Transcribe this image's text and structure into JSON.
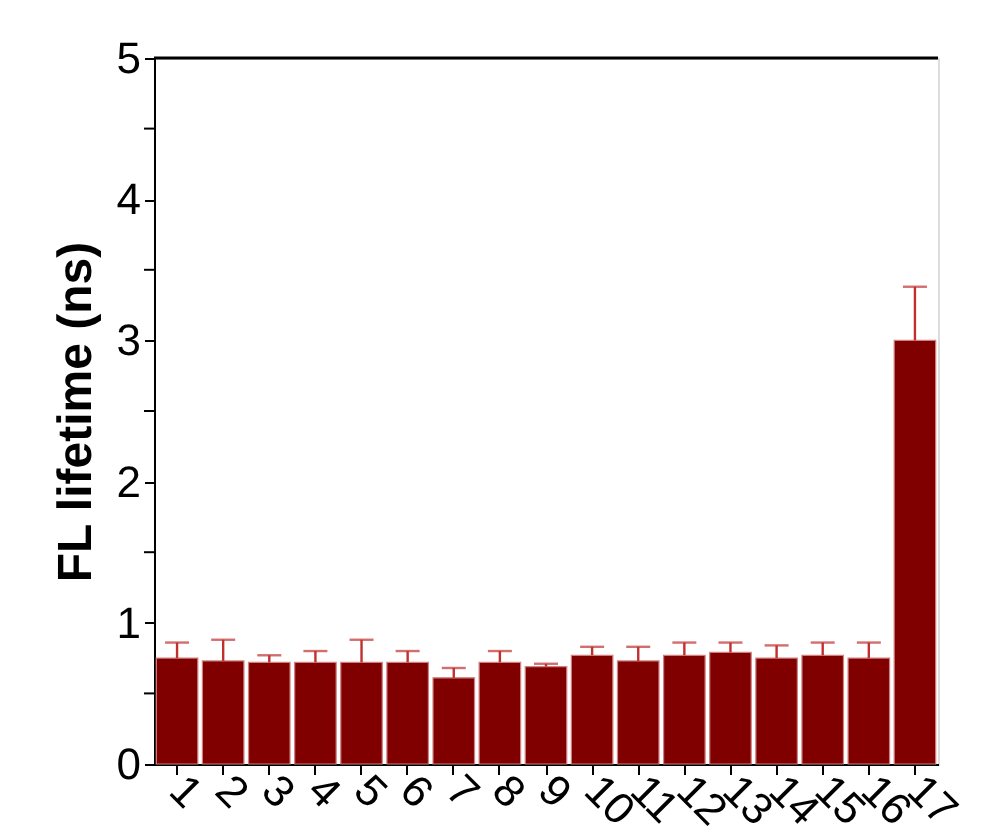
{
  "chart_data": {
    "type": "bar",
    "ylabel": "FL lifetime (ns)",
    "categories": [
      "1",
      "2",
      "3",
      "4",
      "5",
      "6",
      "7",
      "8",
      "9",
      "10",
      "11",
      "12",
      "13",
      "14",
      "15",
      "16",
      "17"
    ],
    "values": [
      0.75,
      0.73,
      0.72,
      0.72,
      0.72,
      0.72,
      0.61,
      0.72,
      0.69,
      0.77,
      0.73,
      0.77,
      0.79,
      0.75,
      0.77,
      0.75,
      3.0
    ],
    "errors": [
      [
        0.75,
        0.86
      ],
      [
        0.73,
        0.88
      ],
      [
        0.72,
        0.77
      ],
      [
        0.72,
        0.8
      ],
      [
        0.72,
        0.88
      ],
      [
        0.72,
        0.8
      ],
      [
        0.61,
        0.68
      ],
      [
        0.72,
        0.8
      ],
      [
        0.69,
        0.71
      ],
      [
        0.77,
        0.83
      ],
      [
        0.73,
        0.83
      ],
      [
        0.77,
        0.86
      ],
      [
        0.79,
        0.86
      ],
      [
        0.75,
        0.84
      ],
      [
        0.77,
        0.86
      ],
      [
        0.75,
        0.86
      ],
      [
        3.0,
        3.38
      ]
    ],
    "color": "#800000",
    "ylim": [
      0,
      5
    ],
    "yticks": [
      0,
      {
        "value": 0.5,
        "label": null
      },
      1,
      {
        "value": 1.5,
        "label": null
      },
      2,
      {
        "value": 2.5,
        "label": null
      },
      3,
      {
        "value": 3.5,
        "label": null
      },
      4,
      {
        "value": 4.5,
        "label": null
      },
      5
    ],
    "grid": false
  }
}
